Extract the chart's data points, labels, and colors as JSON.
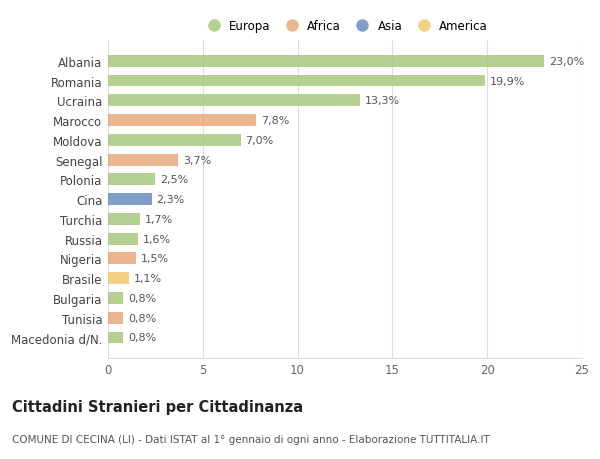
{
  "countries": [
    "Albania",
    "Romania",
    "Ucraina",
    "Marocco",
    "Moldova",
    "Senegal",
    "Polonia",
    "Cina",
    "Turchia",
    "Russia",
    "Nigeria",
    "Brasile",
    "Bulgaria",
    "Tunisia",
    "Macedonia d/N."
  ],
  "values": [
    23.0,
    19.9,
    13.3,
    7.8,
    7.0,
    3.7,
    2.5,
    2.3,
    1.7,
    1.6,
    1.5,
    1.1,
    0.8,
    0.8,
    0.8
  ],
  "labels": [
    "23,0%",
    "19,9%",
    "13,3%",
    "7,8%",
    "7,0%",
    "3,7%",
    "2,5%",
    "2,3%",
    "1,7%",
    "1,6%",
    "1,5%",
    "1,1%",
    "0,8%",
    "0,8%",
    "0,8%"
  ],
  "continent": [
    "Europa",
    "Europa",
    "Europa",
    "Africa",
    "Europa",
    "Africa",
    "Europa",
    "Asia",
    "Europa",
    "Europa",
    "Africa",
    "America",
    "Europa",
    "Africa",
    "Europa"
  ],
  "colors": {
    "Europa": "#a8c97f",
    "Africa": "#e8a87c",
    "Asia": "#6b8dbf",
    "America": "#f0c96e"
  },
  "legend_order": [
    "Europa",
    "Africa",
    "Asia",
    "America"
  ],
  "xlim": [
    0,
    25
  ],
  "xticks": [
    0,
    5,
    10,
    15,
    20,
    25
  ],
  "background_color": "#ffffff",
  "title": "Cittadini Stranieri per Cittadinanza",
  "subtitle": "COMUNE DI CECINA (LI) - Dati ISTAT al 1° gennaio di ogni anno - Elaborazione TUTTITALIA.IT",
  "title_fontsize": 10.5,
  "subtitle_fontsize": 7.5,
  "label_fontsize": 8,
  "bar_height": 0.6,
  "grid_color": "#dddddd",
  "legend_fontsize": 8.5
}
